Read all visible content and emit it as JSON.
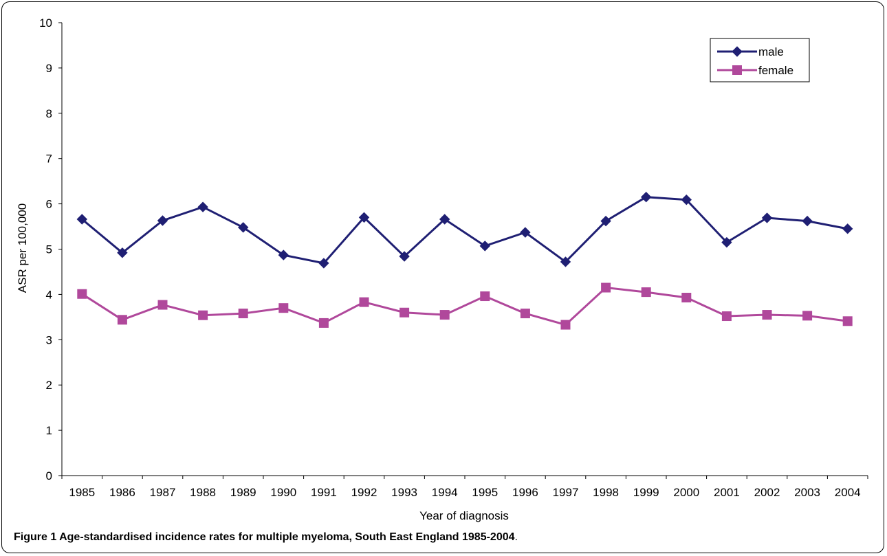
{
  "chart_data": {
    "type": "line",
    "title": "",
    "xlabel": "Year of diagnosis",
    "ylabel": "ASR per 100,000",
    "ylim": [
      0,
      10
    ],
    "yticks": [
      0,
      1,
      2,
      3,
      4,
      5,
      6,
      7,
      8,
      9,
      10
    ],
    "categories": [
      "1985",
      "1986",
      "1987",
      "1988",
      "1989",
      "1990",
      "1991",
      "1992",
      "1993",
      "1994",
      "1995",
      "1996",
      "1997",
      "1998",
      "1999",
      "2000",
      "2001",
      "2002",
      "2003",
      "2004"
    ],
    "grid": false,
    "legend_position": "top-right",
    "series": [
      {
        "name": "male",
        "color": "#1f1f73",
        "marker": "diamond",
        "values": [
          5.66,
          4.92,
          5.63,
          5.93,
          5.48,
          4.87,
          4.69,
          5.7,
          4.84,
          5.66,
          5.07,
          5.37,
          4.72,
          5.62,
          6.15,
          6.09,
          5.15,
          5.69,
          5.62,
          5.45
        ]
      },
      {
        "name": "female",
        "color": "#b0489b",
        "marker": "square",
        "values": [
          4.01,
          3.44,
          3.77,
          3.54,
          3.58,
          3.7,
          3.37,
          3.83,
          3.6,
          3.55,
          3.96,
          3.58,
          3.33,
          4.15,
          4.05,
          3.93,
          3.52,
          3.55,
          3.53,
          3.41
        ]
      }
    ]
  },
  "caption": {
    "label": "Figure 1",
    "text": " Age-standardised incidence rates for multiple myeloma, South East England 1985-2004",
    "end": "."
  }
}
